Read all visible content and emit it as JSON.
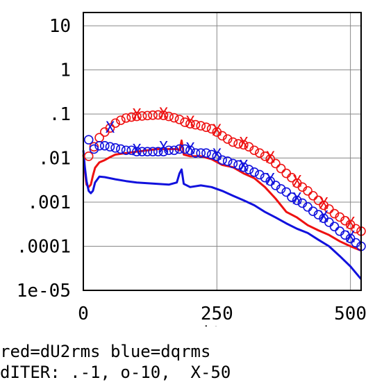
{
  "chart_data": {
    "type": "line",
    "title": "",
    "xlabel": "iter",
    "ylabel": "",
    "x_scale": "linear",
    "y_scale": "log",
    "xlim": [
      0,
      520
    ],
    "ylim": [
      1e-05,
      20
    ],
    "x_ticks": [
      0,
      250,
      500
    ],
    "x_tick_labels": [
      "0",
      "250",
      "500"
    ],
    "y_ticks": [
      10,
      1,
      0.1,
      0.01,
      0.001,
      0.0001,
      1e-05
    ],
    "y_tick_labels": [
      "10",
      "1",
      ".1",
      ".01",
      ".001",
      ".0001",
      "1e-05"
    ],
    "grid": true,
    "colors": {
      "red": "#ee1111",
      "blue": "#1111dd",
      "grid": "#888888"
    },
    "series": [
      {
        "color": "red",
        "marker": "line",
        "points": [
          [
            0,
            0.012
          ],
          [
            3,
            0.005
          ],
          [
            6,
            0.0025
          ],
          [
            10,
            0.0022
          ],
          [
            14,
            0.0025
          ],
          [
            18,
            0.004
          ],
          [
            22,
            0.006
          ],
          [
            30,
            0.008
          ],
          [
            40,
            0.009
          ],
          [
            50,
            0.0105
          ],
          [
            60,
            0.012
          ],
          [
            80,
            0.013
          ],
          [
            100,
            0.014
          ],
          [
            120,
            0.015
          ],
          [
            140,
            0.016
          ],
          [
            160,
            0.016
          ],
          [
            175,
            0.016
          ],
          [
            180,
            0.015
          ],
          [
            184,
            0.025
          ],
          [
            188,
            0.012
          ],
          [
            200,
            0.011
          ],
          [
            220,
            0.011
          ],
          [
            240,
            0.0095
          ],
          [
            260,
            0.007
          ],
          [
            280,
            0.0062
          ],
          [
            300,
            0.0045
          ],
          [
            320,
            0.0035
          ],
          [
            340,
            0.0022
          ],
          [
            360,
            0.0012
          ],
          [
            380,
            0.0006
          ],
          [
            400,
            0.00045
          ],
          [
            420,
            0.0003
          ],
          [
            440,
            0.00023
          ],
          [
            460,
            0.00018
          ],
          [
            480,
            0.00013
          ],
          [
            500,
            0.0001
          ],
          [
            520,
            8e-05
          ]
        ]
      },
      {
        "color": "blue",
        "marker": "line",
        "points": [
          [
            0,
            0.015
          ],
          [
            3,
            0.006
          ],
          [
            6,
            0.003
          ],
          [
            10,
            0.0018
          ],
          [
            14,
            0.0016
          ],
          [
            18,
            0.0018
          ],
          [
            22,
            0.0028
          ],
          [
            30,
            0.0038
          ],
          [
            40,
            0.0037
          ],
          [
            60,
            0.0033
          ],
          [
            80,
            0.003
          ],
          [
            100,
            0.0028
          ],
          [
            120,
            0.0027
          ],
          [
            140,
            0.0026
          ],
          [
            160,
            0.0025
          ],
          [
            175,
            0.0028
          ],
          [
            180,
            0.0045
          ],
          [
            184,
            0.0055
          ],
          [
            188,
            0.0026
          ],
          [
            200,
            0.0022
          ],
          [
            220,
            0.0024
          ],
          [
            240,
            0.0022
          ],
          [
            260,
            0.0018
          ],
          [
            280,
            0.0014
          ],
          [
            300,
            0.0011
          ],
          [
            320,
            0.00085
          ],
          [
            340,
            0.0006
          ],
          [
            360,
            0.00045
          ],
          [
            380,
            0.00033
          ],
          [
            400,
            0.00025
          ],
          [
            420,
            0.0002
          ],
          [
            440,
            0.00014
          ],
          [
            460,
            0.0001
          ],
          [
            480,
            6e-05
          ],
          [
            500,
            3.5e-05
          ],
          [
            520,
            1.8e-05
          ]
        ]
      },
      {
        "color": "red",
        "marker": "o",
        "points": [
          [
            10,
            0.011
          ],
          [
            20,
            0.018
          ],
          [
            30,
            0.029
          ],
          [
            40,
            0.039
          ],
          [
            50,
            0.048
          ],
          [
            60,
            0.062
          ],
          [
            70,
            0.072
          ],
          [
            80,
            0.081
          ],
          [
            90,
            0.085
          ],
          [
            100,
            0.088
          ],
          [
            110,
            0.09
          ],
          [
            120,
            0.092
          ],
          [
            130,
            0.094
          ],
          [
            140,
            0.095
          ],
          [
            150,
            0.093
          ],
          [
            160,
            0.088
          ],
          [
            170,
            0.082
          ],
          [
            180,
            0.075
          ],
          [
            190,
            0.065
          ],
          [
            200,
            0.06
          ],
          [
            210,
            0.057
          ],
          [
            220,
            0.054
          ],
          [
            230,
            0.05
          ],
          [
            240,
            0.046
          ],
          [
            250,
            0.039
          ],
          [
            260,
            0.032
          ],
          [
            270,
            0.027
          ],
          [
            280,
            0.023
          ],
          [
            290,
            0.021
          ],
          [
            300,
            0.02
          ],
          [
            310,
            0.018
          ],
          [
            320,
            0.015
          ],
          [
            330,
            0.013
          ],
          [
            340,
            0.011
          ],
          [
            350,
            0.0095
          ],
          [
            360,
            0.0075
          ],
          [
            370,
            0.0058
          ],
          [
            380,
            0.0045
          ],
          [
            390,
            0.0036
          ],
          [
            400,
            0.0027
          ],
          [
            410,
            0.0022
          ],
          [
            420,
            0.0018
          ],
          [
            430,
            0.0014
          ],
          [
            440,
            0.0011
          ],
          [
            450,
            0.00085
          ],
          [
            460,
            0.0007
          ],
          [
            470,
            0.00055
          ],
          [
            480,
            0.00046
          ],
          [
            490,
            0.00038
          ],
          [
            500,
            0.00031
          ],
          [
            510,
            0.00025
          ],
          [
            520,
            0.00022
          ]
        ]
      },
      {
        "color": "blue",
        "marker": "o",
        "points": [
          [
            10,
            0.026
          ],
          [
            20,
            0.016
          ],
          [
            30,
            0.019
          ],
          [
            40,
            0.019
          ],
          [
            50,
            0.018
          ],
          [
            60,
            0.017
          ],
          [
            70,
            0.016
          ],
          [
            80,
            0.015
          ],
          [
            90,
            0.015
          ],
          [
            100,
            0.014
          ],
          [
            110,
            0.014
          ],
          [
            120,
            0.014
          ],
          [
            130,
            0.014
          ],
          [
            140,
            0.014
          ],
          [
            150,
            0.014
          ],
          [
            160,
            0.015
          ],
          [
            170,
            0.015
          ],
          [
            180,
            0.016
          ],
          [
            190,
            0.016
          ],
          [
            200,
            0.015
          ],
          [
            210,
            0.013
          ],
          [
            220,
            0.013
          ],
          [
            230,
            0.013
          ],
          [
            240,
            0.012
          ],
          [
            250,
            0.011
          ],
          [
            260,
            0.009
          ],
          [
            270,
            0.0085
          ],
          [
            280,
            0.0075
          ],
          [
            290,
            0.007
          ],
          [
            300,
            0.0062
          ],
          [
            310,
            0.0055
          ],
          [
            320,
            0.0048
          ],
          [
            330,
            0.0042
          ],
          [
            340,
            0.0036
          ],
          [
            350,
            0.003
          ],
          [
            360,
            0.0024
          ],
          [
            370,
            0.002
          ],
          [
            380,
            0.0017
          ],
          [
            390,
            0.0013
          ],
          [
            400,
            0.0011
          ],
          [
            410,
            0.00095
          ],
          [
            420,
            0.00078
          ],
          [
            430,
            0.00062
          ],
          [
            440,
            0.00052
          ],
          [
            450,
            0.00043
          ],
          [
            460,
            0.00035
          ],
          [
            470,
            0.00028
          ],
          [
            480,
            0.00022
          ],
          [
            490,
            0.00018
          ],
          [
            500,
            0.00015
          ],
          [
            510,
            0.00012
          ],
          [
            520,
            0.0001
          ]
        ]
      },
      {
        "color": "red",
        "marker": "X",
        "points": [
          [
            100,
            0.088
          ],
          [
            150,
            0.093
          ],
          [
            200,
            0.06
          ],
          [
            250,
            0.039
          ],
          [
            300,
            0.02
          ],
          [
            350,
            0.0095
          ],
          [
            400,
            0.0027
          ],
          [
            450,
            0.00085
          ],
          [
            500,
            0.00031
          ]
        ]
      },
      {
        "color": "blue",
        "marker": "X",
        "points": [
          [
            50,
            0.045
          ],
          [
            100,
            0.014
          ],
          [
            150,
            0.016
          ],
          [
            200,
            0.015
          ],
          [
            250,
            0.011
          ],
          [
            300,
            0.006
          ],
          [
            350,
            0.003
          ],
          [
            400,
            0.0011
          ],
          [
            450,
            0.00043
          ],
          [
            500,
            0.00015
          ]
        ]
      }
    ]
  },
  "caption": {
    "line1": "red=dU2rms blue=dqrms",
    "line2": "dITER: .-1, o-10,  X-50"
  }
}
